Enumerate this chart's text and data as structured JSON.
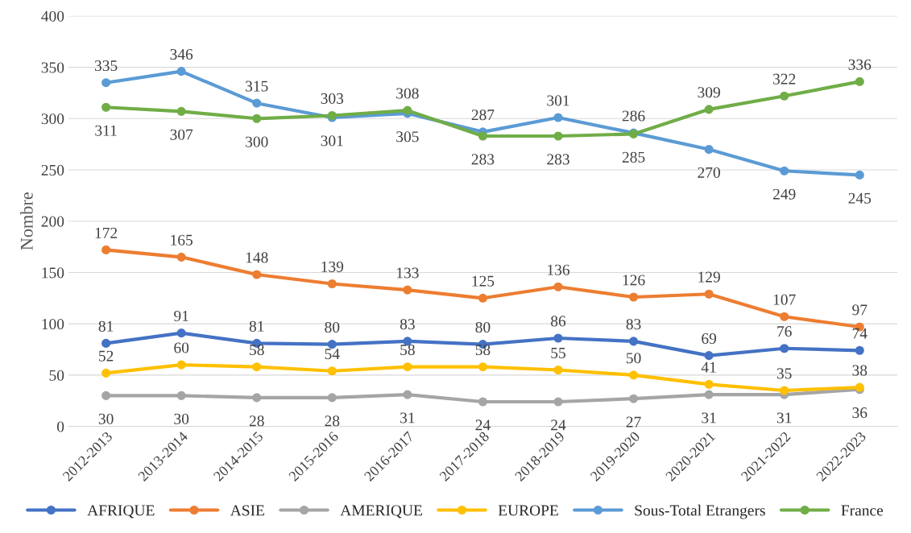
{
  "chart_data": {
    "type": "line",
    "ylabel": "Nombre",
    "categories": [
      "2012-2013",
      "2013-2014",
      "2014-2015",
      "2015-2016",
      "2016-2017",
      "2017-2018",
      "2018-2019",
      "2019-2020",
      "2020-2021",
      "2021-2022",
      "2022-2023"
    ],
    "series": [
      {
        "name": "AFRIQUE",
        "color": "#4472c4",
        "values": [
          81,
          91,
          81,
          80,
          83,
          80,
          86,
          83,
          69,
          76,
          74
        ]
      },
      {
        "name": "ASIE",
        "color": "#ed7d31",
        "values": [
          172,
          165,
          148,
          139,
          133,
          125,
          136,
          126,
          129,
          107,
          97
        ]
      },
      {
        "name": "AMERIQUE",
        "color": "#a5a5a5",
        "values": [
          30,
          30,
          28,
          28,
          31,
          24,
          24,
          27,
          31,
          31,
          36
        ]
      },
      {
        "name": "EUROPE",
        "color": "#ffc000",
        "values": [
          52,
          60,
          58,
          54,
          58,
          58,
          55,
          50,
          41,
          35,
          38
        ]
      },
      {
        "name": "Sous-Total Etrangers",
        "color": "#5b9bd5",
        "values": [
          335,
          346,
          315,
          301,
          305,
          287,
          301,
          286,
          270,
          249,
          245
        ]
      },
      {
        "name": "France",
        "color": "#70ad47",
        "values": [
          311,
          307,
          300,
          303,
          308,
          283,
          283,
          285,
          309,
          322,
          336
        ]
      }
    ],
    "ylim": [
      0,
      400
    ],
    "yticks": [
      0,
      50,
      100,
      150,
      200,
      250,
      300,
      350,
      400
    ],
    "grid": "y",
    "legend": "bottom",
    "marker": "circle",
    "line_style": "solid",
    "data_labels": true
  }
}
